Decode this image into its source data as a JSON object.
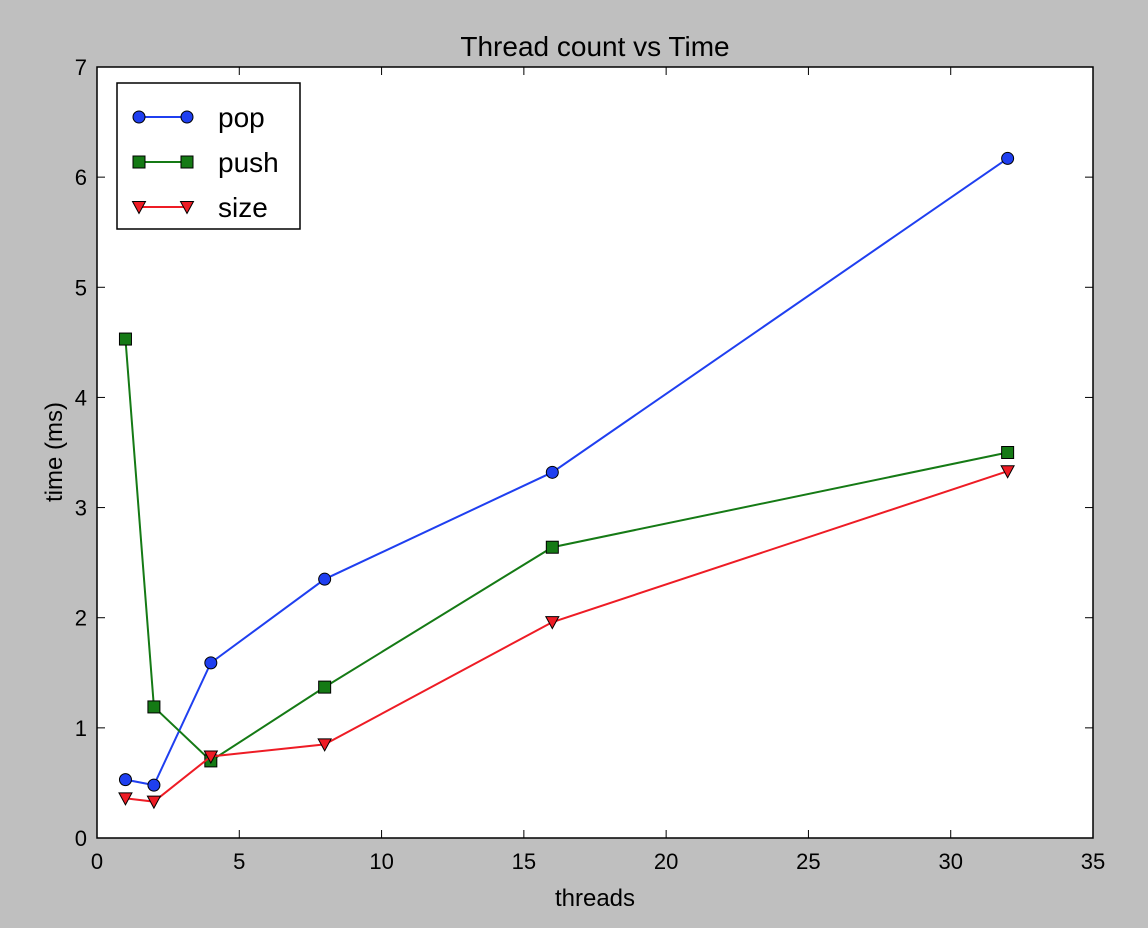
{
  "chart_data": {
    "type": "line",
    "title": "Thread count vs Time",
    "xlabel": "threads",
    "ylabel": "time (ms)",
    "xlim": [
      0,
      35
    ],
    "ylim": [
      0,
      7
    ],
    "xticks": [
      0,
      5,
      10,
      15,
      20,
      25,
      30,
      35
    ],
    "yticks": [
      0,
      1,
      2,
      3,
      4,
      5,
      6,
      7
    ],
    "grid": false,
    "legend_position": "top-left",
    "x": [
      1,
      2,
      4,
      8,
      16,
      32
    ],
    "series": [
      {
        "name": "pop",
        "color": "#1f3ff0",
        "marker": "circle",
        "values": [
          0.53,
          0.48,
          1.59,
          2.35,
          3.32,
          6.17
        ]
      },
      {
        "name": "push",
        "color": "#157a15",
        "marker": "square",
        "values": [
          4.53,
          1.19,
          0.7,
          1.37,
          2.64,
          3.5
        ]
      },
      {
        "name": "size",
        "color": "#ee1c25",
        "marker": "triangle",
        "values": [
          0.36,
          0.33,
          0.74,
          0.85,
          1.96,
          3.33
        ]
      }
    ]
  }
}
